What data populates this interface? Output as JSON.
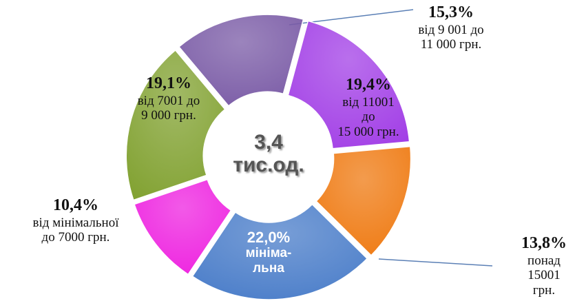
{
  "chart_data": {
    "type": "donut",
    "center_label": "3,4\nтис.од.",
    "categories": [
      "від 9 001 до\n11 000 грн.",
      "від 11001\nдо\n15 000 грн.",
      "понад\n15001 грн.",
      "мініма-\nльна",
      "від мінімальної\nдо 7000 грн.",
      "від 7001 до\n9 000 грн."
    ],
    "values": [
      15.3,
      19.4,
      13.8,
      22.0,
      10.4,
      19.1
    ],
    "value_labels": [
      "15,3%",
      "19,4%",
      "13,8%",
      "22,0%",
      "10,4%",
      "19,1%"
    ],
    "colors": [
      "#7a5ba6",
      "#a23fe6",
      "#ef7a12",
      "#4a7dc9",
      "#ee22e0",
      "#82a232"
    ]
  }
}
